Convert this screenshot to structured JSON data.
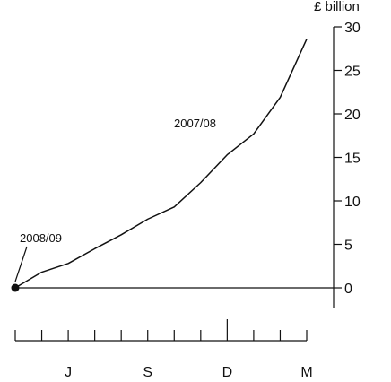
{
  "chart_data": {
    "type": "line",
    "unit_label": "£ billion",
    "ylim": [
      0,
      30
    ],
    "y_ticks": [
      0,
      5,
      10,
      15,
      20,
      25,
      30
    ],
    "y_tick_labels": [
      "0",
      "5",
      "10",
      "15",
      "20",
      "25",
      "30"
    ],
    "x_ticks_count": 12,
    "x_month_labels": [
      "J",
      "S",
      "D",
      "M"
    ],
    "x_month_label_positions": [
      2,
      5,
      8,
      11
    ],
    "series": [
      {
        "x": [
          0,
          1,
          2,
          3,
          4,
          5,
          6,
          7,
          8,
          9,
          10,
          11
        ],
        "y": [
          0,
          1.8,
          2.8,
          4.5,
          6.1,
          7.9,
          9.3,
          12.1,
          15.3,
          17.7,
          21.9,
          28.6
        ]
      }
    ],
    "annotations": [
      {
        "text": "2007/08"
      },
      {
        "text": "2008/09"
      }
    ],
    "grid": false,
    "colors": {
      "line": "#111111",
      "axis": "#111111"
    }
  }
}
